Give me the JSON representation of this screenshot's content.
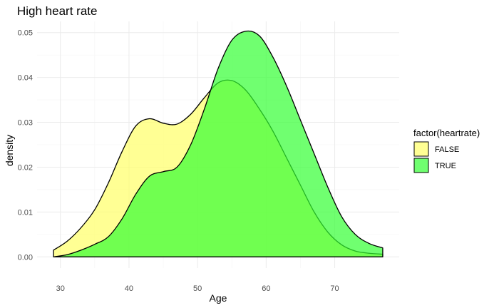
{
  "chart_data": {
    "type": "area",
    "title": "High heart rate",
    "xlabel": "Age",
    "ylabel": "density",
    "xlim": [
      29,
      77
    ],
    "ylim": [
      0,
      0.05
    ],
    "x_ticks": [
      30,
      40,
      50,
      60,
      70
    ],
    "y_ticks": [
      0.0,
      0.01,
      0.02,
      0.03,
      0.04,
      0.05
    ],
    "y_tick_labels": [
      "0.00",
      "0.01",
      "0.02",
      "0.03",
      "0.04",
      "0.05"
    ],
    "grid": true,
    "legend": {
      "title": "factor(heartrate)",
      "position": "right"
    },
    "series": [
      {
        "name": "FALSE",
        "color": "#ffff66",
        "x": [
          29,
          31,
          33,
          35,
          37,
          39,
          41,
          43,
          45,
          47,
          49,
          51,
          53,
          55,
          57,
          59,
          61,
          63,
          65,
          67,
          69,
          71,
          73,
          75,
          77
        ],
        "y": [
          0.0015,
          0.0035,
          0.0065,
          0.0105,
          0.0165,
          0.0235,
          0.0292,
          0.0308,
          0.0298,
          0.0296,
          0.0318,
          0.0355,
          0.0388,
          0.0393,
          0.0372,
          0.033,
          0.028,
          0.022,
          0.016,
          0.01,
          0.0055,
          0.0027,
          0.0013,
          0.0008,
          0.0006
        ]
      },
      {
        "name": "TRUE",
        "color": "#33ff33",
        "x": [
          29,
          31,
          33,
          35,
          37,
          39,
          41,
          43,
          45,
          47,
          49,
          51,
          53,
          55,
          57,
          59,
          61,
          63,
          65,
          67,
          69,
          71,
          73,
          75,
          77
        ],
        "y": [
          0.0,
          0.0005,
          0.0015,
          0.0028,
          0.0045,
          0.0085,
          0.014,
          0.018,
          0.019,
          0.02,
          0.025,
          0.033,
          0.042,
          0.0483,
          0.0503,
          0.0493,
          0.0445,
          0.038,
          0.0305,
          0.023,
          0.0155,
          0.009,
          0.005,
          0.003,
          0.002
        ]
      }
    ]
  }
}
